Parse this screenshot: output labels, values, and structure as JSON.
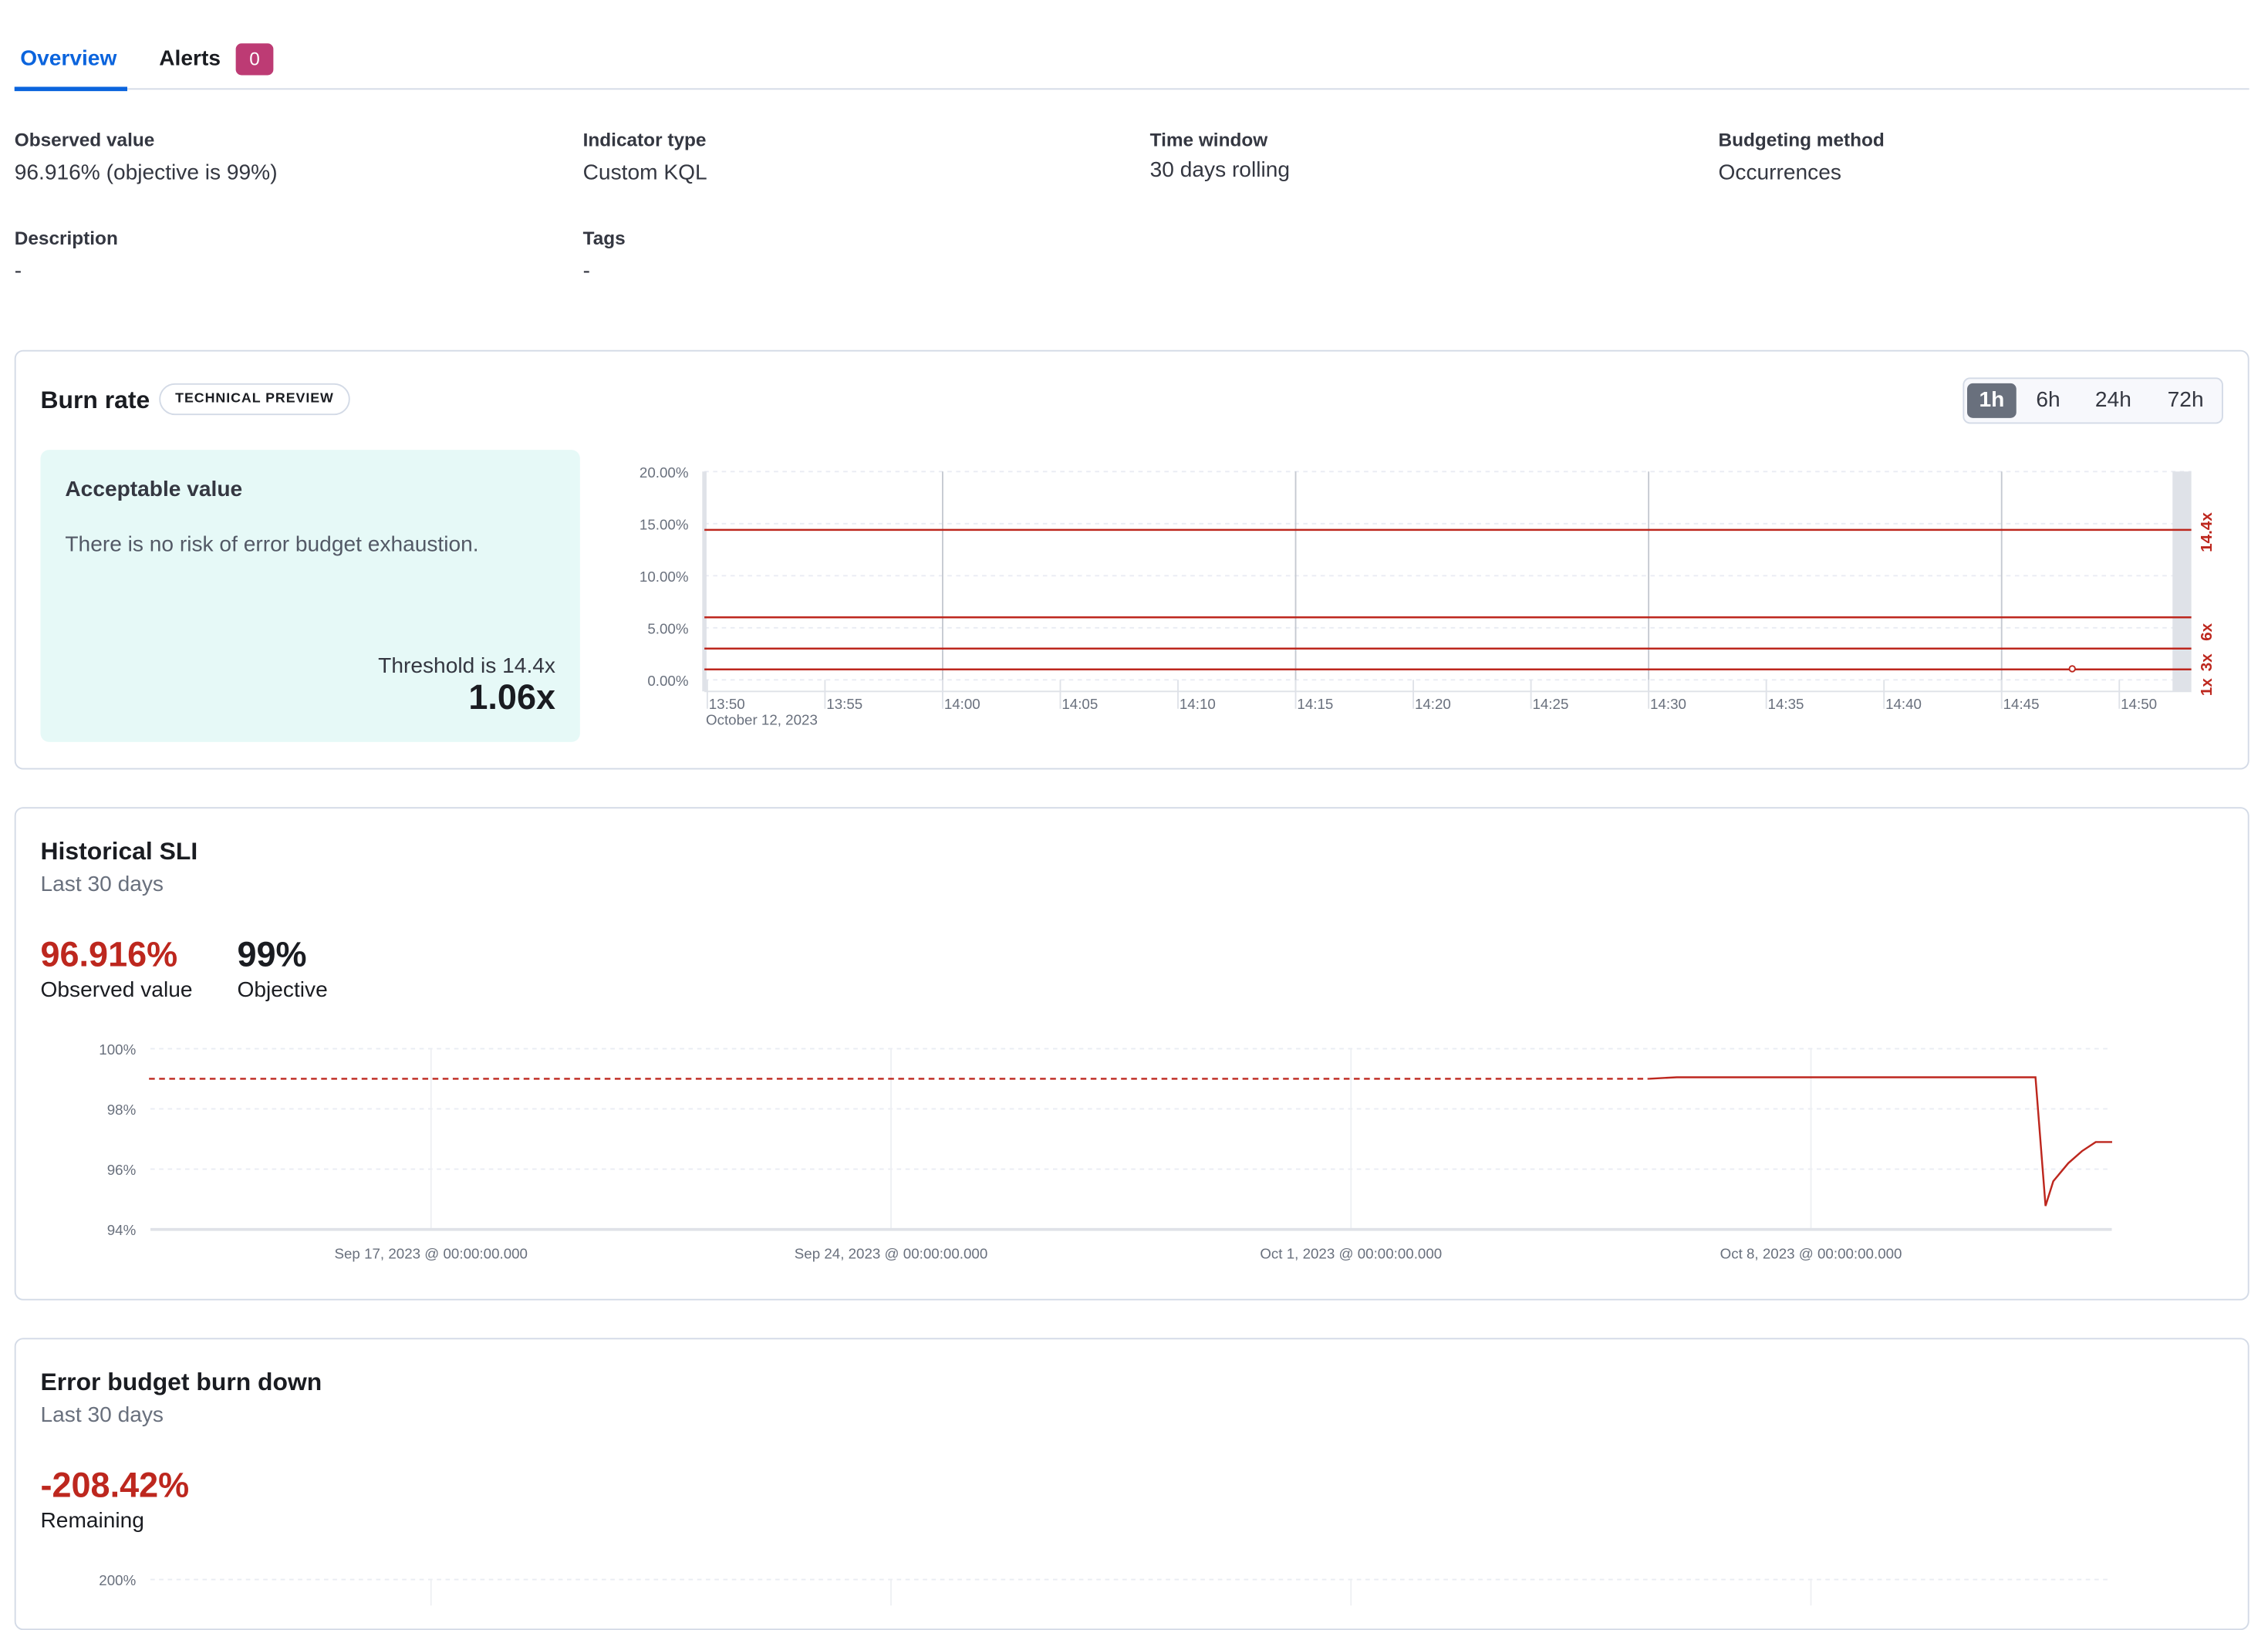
{
  "tabs": [
    {
      "label": "Overview",
      "active": true
    },
    {
      "label": "Alerts",
      "badge": "0"
    }
  ],
  "colors": {
    "accent": "#0b64dd",
    "badge": "#bd3b74",
    "danger": "#bd271e",
    "success_bg": "#e6f9f7"
  },
  "summary": {
    "observed": {
      "label": "Observed value",
      "value": "96.916% (objective is 99%)"
    },
    "indicator": {
      "label": "Indicator type",
      "value": "Custom KQL"
    },
    "time_window": {
      "label": "Time window",
      "value": "30 days rolling"
    },
    "budgeting": {
      "label": "Budgeting method",
      "value": "Occurrences"
    },
    "description": {
      "label": "Description",
      "value": "-"
    },
    "tags": {
      "label": "Tags",
      "value": "-"
    }
  },
  "burn_rate": {
    "title": "Burn rate",
    "badge": "TECHNICAL PREVIEW",
    "windows": [
      "1h",
      "6h",
      "24h",
      "72h"
    ],
    "selected_window": "1h",
    "callout": {
      "title": "Acceptable value",
      "text": "There is no risk of error budget exhaustion.",
      "threshold": "Threshold is 14.4x",
      "value": "1.06x"
    }
  },
  "historical": {
    "title": "Historical SLI",
    "subtitle": "Last 30 days",
    "observed_value": "96.916%",
    "observed_label": "Observed value",
    "objective_value": "99%",
    "objective_label": "Objective"
  },
  "error_budget": {
    "title": "Error budget burn down",
    "subtitle": "Last 30 days",
    "remaining_value": "-208.42%",
    "remaining_label": "Remaining"
  },
  "chart_data": [
    {
      "type": "line",
      "yticks": [
        "0.00%",
        "5.00%",
        "10.00%",
        "15.00%",
        "20.00%"
      ],
      "ylim": [
        0,
        20
      ],
      "xticks": [
        "13:50",
        "13:55",
        "14:00",
        "14:05",
        "14:10",
        "14:15",
        "14:20",
        "14:25",
        "14:30",
        "14:35",
        "14:40",
        "14:45",
        "14:50"
      ],
      "xlabel_date": "October 12, 2023",
      "thresholds": [
        {
          "label": "14.4x",
          "value": 14.4
        },
        {
          "label": "6x",
          "value": 6
        },
        {
          "label": "3x",
          "value": 3
        },
        {
          "label": "1x",
          "value": 1
        }
      ],
      "points": [
        {
          "x": "14:48",
          "y": 1.06
        }
      ],
      "grid": true
    },
    {
      "type": "line",
      "yticks": [
        "94%",
        "96%",
        "98%",
        "100%"
      ],
      "ylim": [
        94,
        100
      ],
      "xticks": [
        "Sep 17, 2023 @ 00:00:00.000",
        "Sep 24, 2023 @ 00:00:00.000",
        "Oct 1, 2023 @ 00:00:00.000",
        "Oct 8, 2023 @ 00:00:00.000"
      ],
      "xlim": [
        "2023-09-12T17:00",
        "2023-10-12T14:00"
      ],
      "objective": {
        "value": 99,
        "x": [
          "2023-09-12T17:00",
          "2023-10-05T12:45"
        ]
      },
      "series": [
        {
          "points": [
            [
              "2023-10-05T12:45",
              99.0
            ],
            [
              "2023-10-05T23:00",
              99.05
            ],
            [
              "2023-10-11T10:00",
              99.05
            ],
            [
              "2023-10-11T13:40",
              94.78
            ],
            [
              "2023-10-11T16:30",
              95.6
            ],
            [
              "2023-10-11T22:00",
              96.2
            ],
            [
              "2023-10-12T03:00",
              96.6
            ],
            [
              "2023-10-12T08:00",
              96.9
            ],
            [
              "2023-10-12T14:00",
              96.9
            ]
          ]
        }
      ],
      "grid": true
    },
    {
      "type": "line",
      "yticks": [
        "200%"
      ],
      "grid": true
    }
  ]
}
